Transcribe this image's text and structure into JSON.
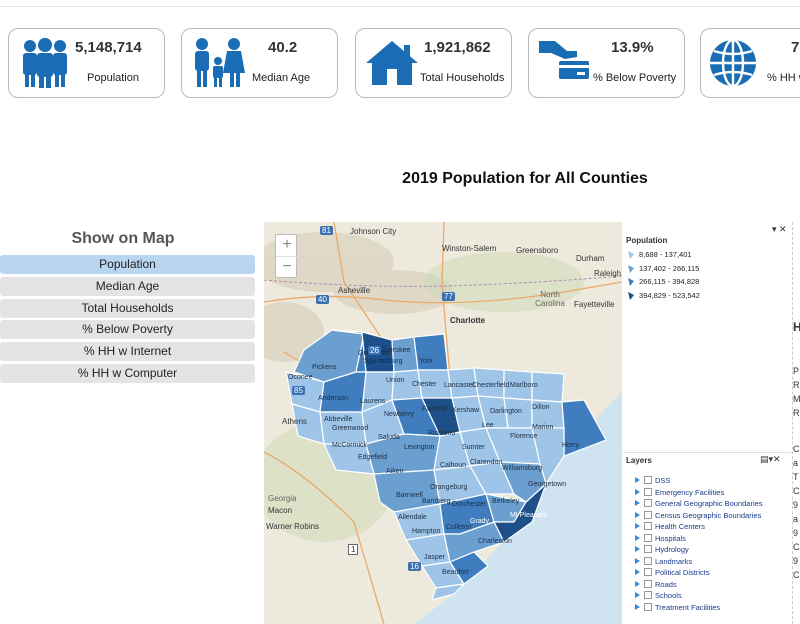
{
  "stats": [
    {
      "value": "5,148,714",
      "label": "Population",
      "icon": "people-group-icon"
    },
    {
      "value": "40.2",
      "label": "Median Age",
      "icon": "family-icon"
    },
    {
      "value": "1,921,862",
      "label": "Total Households",
      "icon": "house-icon"
    },
    {
      "value": "13.9%",
      "label": "% Below Poverty",
      "icon": "hand-card-icon"
    },
    {
      "value": "7",
      "label": "% HH w",
      "icon": "globe-icon"
    }
  ],
  "map_title": "2019 Population for All Counties",
  "panel": {
    "title": "Show on Map",
    "buttons": [
      "Population",
      "Median Age",
      "Total Households",
      "% Below Poverty",
      "% HH w Internet",
      "% HH w Computer"
    ],
    "active": "Population"
  },
  "map": {
    "zoom_in": "+",
    "zoom_out": "−",
    "places": [
      "Johnson City",
      "Winston-Salem",
      "Greensboro",
      "Durham",
      "Raleigh",
      "Asheville",
      "North Carolina",
      "Charlotte",
      "Fayetteville",
      "Athens",
      "Georgia",
      "Macon",
      "Warner Robins"
    ],
    "counties": [
      "Greenville",
      "Cherokee",
      "Spartanburg",
      "York",
      "Pickens",
      "Oconee",
      "Union",
      "Chester",
      "Lancaster",
      "Chesterfield",
      "Marlboro",
      "Anderson",
      "Laurens",
      "Newberry",
      "Fairfield",
      "Kershaw",
      "Darlington",
      "Dillon",
      "Abbeville",
      "Greenwood",
      "Richland",
      "Lee",
      "Marion",
      "McCormick",
      "Saluda",
      "Lexington",
      "Sumter",
      "Florence",
      "Horry",
      "Edgefield",
      "Aiken",
      "Calhoun",
      "Clarendon",
      "Williamsburg",
      "Orangeburg",
      "Georgetown",
      "Barnwell",
      "Bamberg",
      "Dorchester",
      "Berkeley",
      "Allendale",
      "Colleton",
      "Charleston",
      "Hampton",
      "Jasper",
      "Beaufort",
      "Mt Pleasant",
      "Grady"
    ],
    "highways": [
      "81",
      "77",
      "40",
      "26",
      "85",
      "1",
      "16"
    ]
  },
  "legend": {
    "title": "Population",
    "ranges": [
      "8,688 - 137,401",
      "137,402 - 266,115",
      "266,115 - 394,828",
      "394,829 - 523,542"
    ],
    "colors": [
      "#9ec5e8",
      "#6a9fd0",
      "#3f7dbf",
      "#1d4f88"
    ]
  },
  "layers": {
    "title": "Layers",
    "items": [
      "DSS",
      "Emergency Facilities",
      "General Geographic Boundaries",
      "Census Geographic Boundaries",
      "Health Centers",
      "Hospitals",
      "Hydrology",
      "Landmarks",
      "Political Districts",
      "Roads",
      "Schools",
      "Treatment Facilities"
    ]
  },
  "edge_text": [
    "H",
    "P",
    "R",
    "M",
    "R",
    "C",
    "a",
    "T",
    "C",
    "9",
    "a",
    "9",
    "C",
    "9",
    "C"
  ],
  "colors": {
    "accent": "#1a6db5",
    "active_button": "#b9d6f0",
    "card_border": "#b9b9b9"
  }
}
